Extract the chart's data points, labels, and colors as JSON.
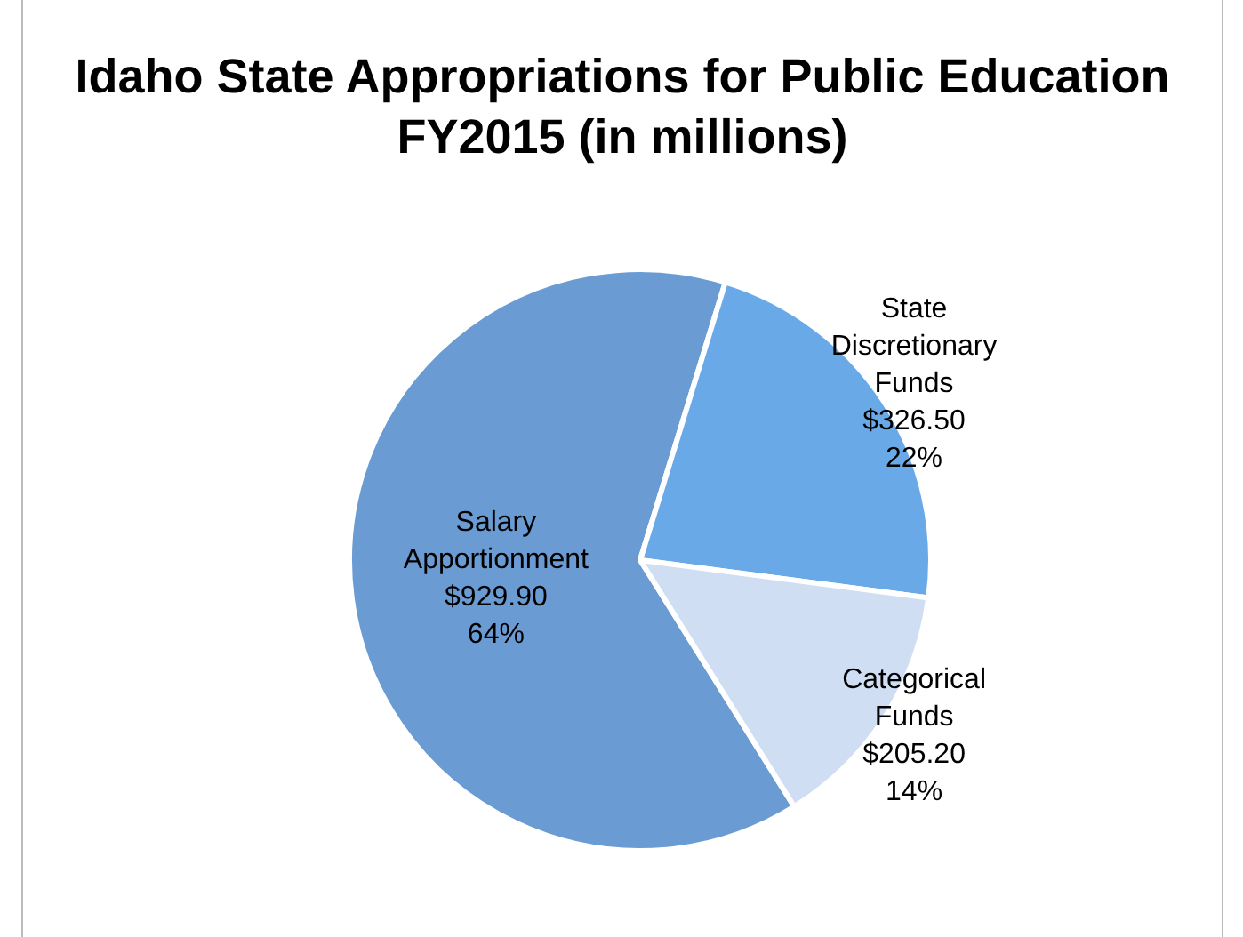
{
  "chart_data": {
    "type": "pie",
    "title": "Idaho State Appropriations for Public Education FY2015 (in millions)",
    "categories": [
      "Salary Apportionment",
      "State Discretionary Funds",
      "Categorical Funds"
    ],
    "values": [
      929.9,
      326.5,
      205.2
    ],
    "colors": [
      "#6a9bd3",
      "#69a9e8",
      "#cfdef2"
    ],
    "value_labels": [
      "$929.90\n64%",
      "$326.50\n22%",
      "$205.20\n14%"
    ],
    "legend": false
  }
}
